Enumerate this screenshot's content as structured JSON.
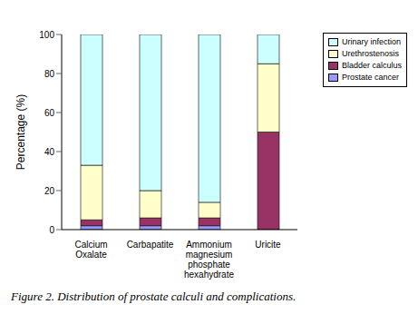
{
  "chart_data": {
    "type": "bar",
    "title": "Figure 2. Distribution of prostate calculi and complications.",
    "y_label": "Percentage (%)",
    "categories": [
      "Calcium Oxalate",
      "Carbapatite",
      "Ammonium magnesium phosphate hexahydrate",
      "Uricite"
    ],
    "series": [
      {
        "name": "Urinary infection",
        "color": "#ccffff",
        "values": [
          67,
          80,
          86,
          15
        ]
      },
      {
        "name": "Urethrostenosis",
        "color": "#ffffcc",
        "values": [
          28,
          14,
          8,
          35
        ]
      },
      {
        "name": "Bladder calculus",
        "color": "#993366",
        "values": [
          3,
          4,
          4,
          50
        ]
      },
      {
        "name": "Prostate cancer",
        "color": "#9999ff",
        "values": [
          2,
          2,
          2,
          0
        ]
      }
    ],
    "stacked": true,
    "ylim": [
      0,
      100
    ],
    "yticks": [
      0,
      20,
      40,
      60,
      80,
      100
    ],
    "grid": false,
    "legend": "top-right"
  }
}
